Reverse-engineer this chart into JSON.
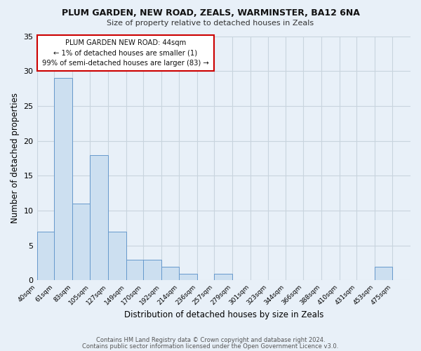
{
  "title1": "PLUM GARDEN, NEW ROAD, ZEALS, WARMINSTER, BA12 6NA",
  "title2": "Size of property relative to detached houses in Zeals",
  "xlabel": "Distribution of detached houses by size in Zeals",
  "ylabel": "Number of detached properties",
  "bin_labels": [
    "40sqm",
    "61sqm",
    "83sqm",
    "105sqm",
    "127sqm",
    "149sqm",
    "170sqm",
    "192sqm",
    "214sqm",
    "236sqm",
    "257sqm",
    "279sqm",
    "301sqm",
    "323sqm",
    "344sqm",
    "366sqm",
    "388sqm",
    "410sqm",
    "431sqm",
    "453sqm",
    "475sqm"
  ],
  "bin_edges": [
    40,
    61,
    83,
    105,
    127,
    149,
    170,
    192,
    214,
    236,
    257,
    279,
    301,
    323,
    344,
    366,
    388,
    410,
    431,
    453,
    475
  ],
  "bar_heights": [
    7,
    29,
    11,
    18,
    7,
    3,
    3,
    2,
    1,
    0,
    1,
    0,
    0,
    0,
    0,
    0,
    0,
    0,
    0,
    2,
    0
  ],
  "bar_color": "#ccdff0",
  "bar_edge_color": "#6699cc",
  "ylim": [
    0,
    35
  ],
  "yticks": [
    0,
    5,
    10,
    15,
    20,
    25,
    30,
    35
  ],
  "annotation_title": "PLUM GARDEN NEW ROAD: 44sqm",
  "annotation_line1": "← 1% of detached houses are smaller (1)",
  "annotation_line2": "99% of semi-detached houses are larger (83) →",
  "annotation_box_color": "#ffffff",
  "annotation_border_color": "#cc0000",
  "footer1": "Contains HM Land Registry data © Crown copyright and database right 2024.",
  "footer2": "Contains public sector information licensed under the Open Government Licence v3.0.",
  "grid_color": "#c8d4de",
  "bg_color": "#e8f0f8",
  "plot_bg_color": "#e8f0f8"
}
